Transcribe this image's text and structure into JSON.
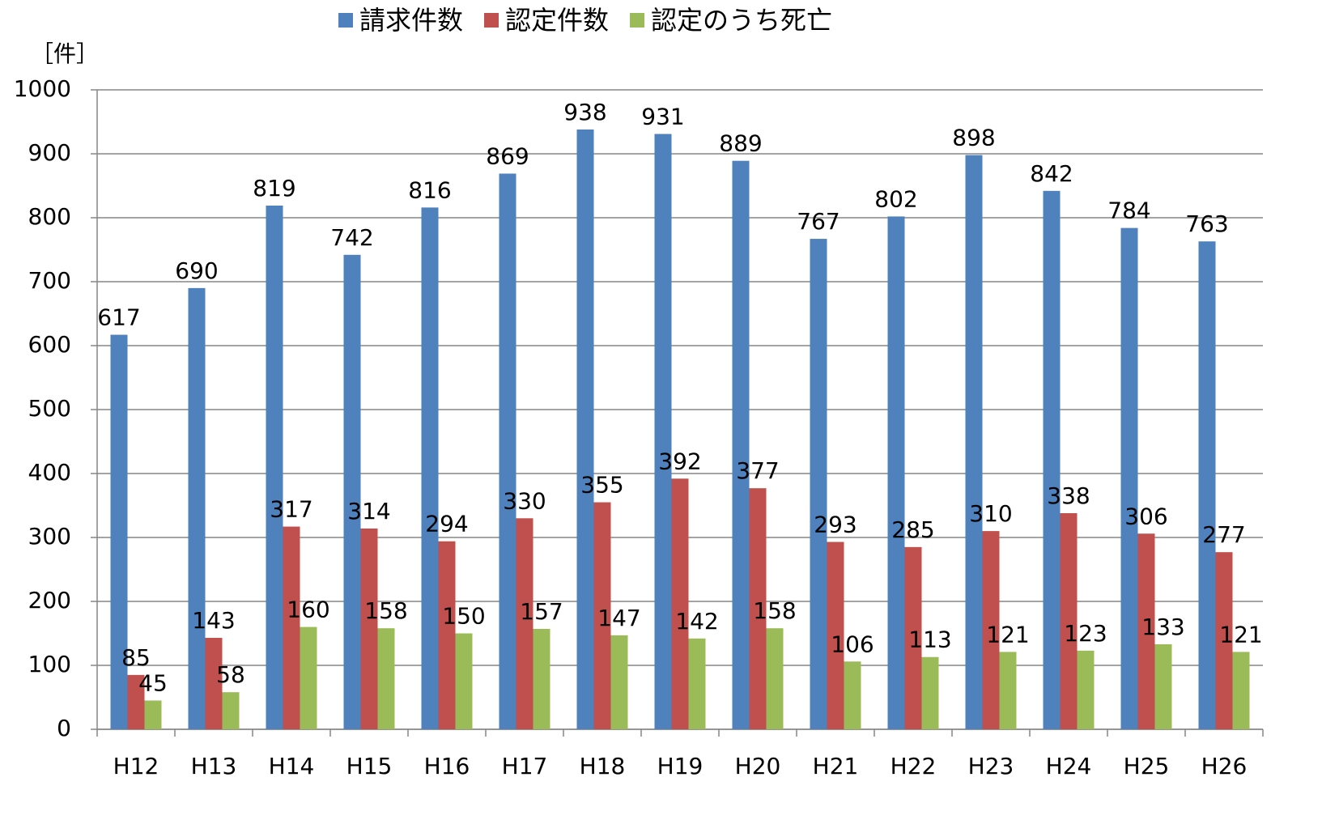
{
  "chart_data": {
    "type": "bar",
    "ylabel": "［件］",
    "categories": [
      "H12",
      "H13",
      "H14",
      "H15",
      "H16",
      "H17",
      "H18",
      "H19",
      "H20",
      "H21",
      "H22",
      "H23",
      "H24",
      "H25",
      "H26"
    ],
    "series": [
      {
        "name": "請求件数",
        "color": "#4f81bd",
        "values": [
          617,
          690,
          819,
          742,
          816,
          869,
          938,
          931,
          889,
          767,
          802,
          898,
          842,
          784,
          763
        ]
      },
      {
        "name": "認定件数",
        "color": "#c0504d",
        "values": [
          85,
          143,
          317,
          314,
          294,
          330,
          355,
          392,
          377,
          293,
          285,
          310,
          338,
          306,
          277
        ]
      },
      {
        "name": "認定のうち死亡",
        "color": "#9bbb59",
        "values": [
          45,
          58,
          160,
          158,
          150,
          157,
          147,
          142,
          158,
          106,
          113,
          121,
          123,
          133,
          121
        ]
      }
    ],
    "ylim": [
      0,
      1000
    ],
    "yticks": [
      0,
      100,
      200,
      300,
      400,
      500,
      600,
      700,
      800,
      900,
      1000
    ],
    "grid": true
  }
}
